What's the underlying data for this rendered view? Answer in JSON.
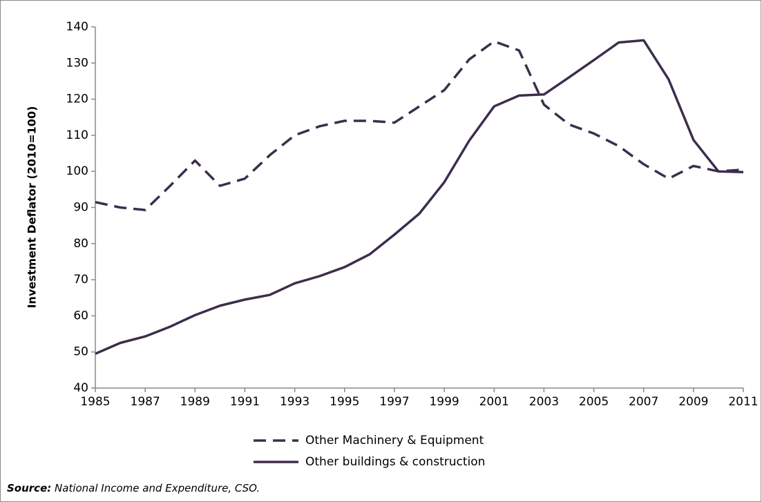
{
  "chart_data": {
    "type": "line",
    "y_label": "Investment Deflator (2010=100)",
    "x": [
      1985,
      1986,
      1987,
      1988,
      1989,
      1990,
      1991,
      1992,
      1993,
      1994,
      1995,
      1996,
      1997,
      1998,
      1999,
      2000,
      2001,
      2002,
      2003,
      2004,
      2005,
      2006,
      2007,
      2008,
      2009,
      2010,
      2011
    ],
    "series": [
      {
        "name": "Other Machinery & Equipment",
        "color": "#3d2d4c",
        "dash": true,
        "values": [
          91.5,
          90,
          89.3,
          96,
          103,
          96,
          98,
          104.5,
          110,
          112.5,
          114,
          114,
          113.5,
          118,
          122.5,
          131,
          136,
          133.5,
          118.5,
          113,
          110.5,
          107,
          102,
          98,
          101.5,
          100,
          100.5
        ]
      },
      {
        "name": "Other buildings & construction",
        "color": "#3d2d4c",
        "dash": false,
        "values": [
          49.5,
          52.5,
          54.3,
          57,
          60.2,
          62.8,
          64.5,
          65.8,
          69,
          71,
          73.5,
          77,
          82.5,
          88.3,
          97,
          108.5,
          118,
          121,
          121.3,
          126,
          130.8,
          135.7,
          136.3,
          125.5,
          108.7,
          100,
          99.8
        ]
      }
    ],
    "xlim": [
      1985,
      2011
    ],
    "xticks": [
      1985,
      1987,
      1989,
      1991,
      1993,
      1995,
      1997,
      1999,
      2001,
      2003,
      2005,
      2007,
      2009,
      2011
    ],
    "ylim": [
      40,
      140
    ],
    "yticks": [
      40,
      50,
      60,
      70,
      80,
      90,
      100,
      110,
      120,
      130,
      140
    ],
    "grid": false,
    "legend": "bottom",
    "source_label": "Source:",
    "source_text": "National Income and Expenditure, CSO."
  }
}
